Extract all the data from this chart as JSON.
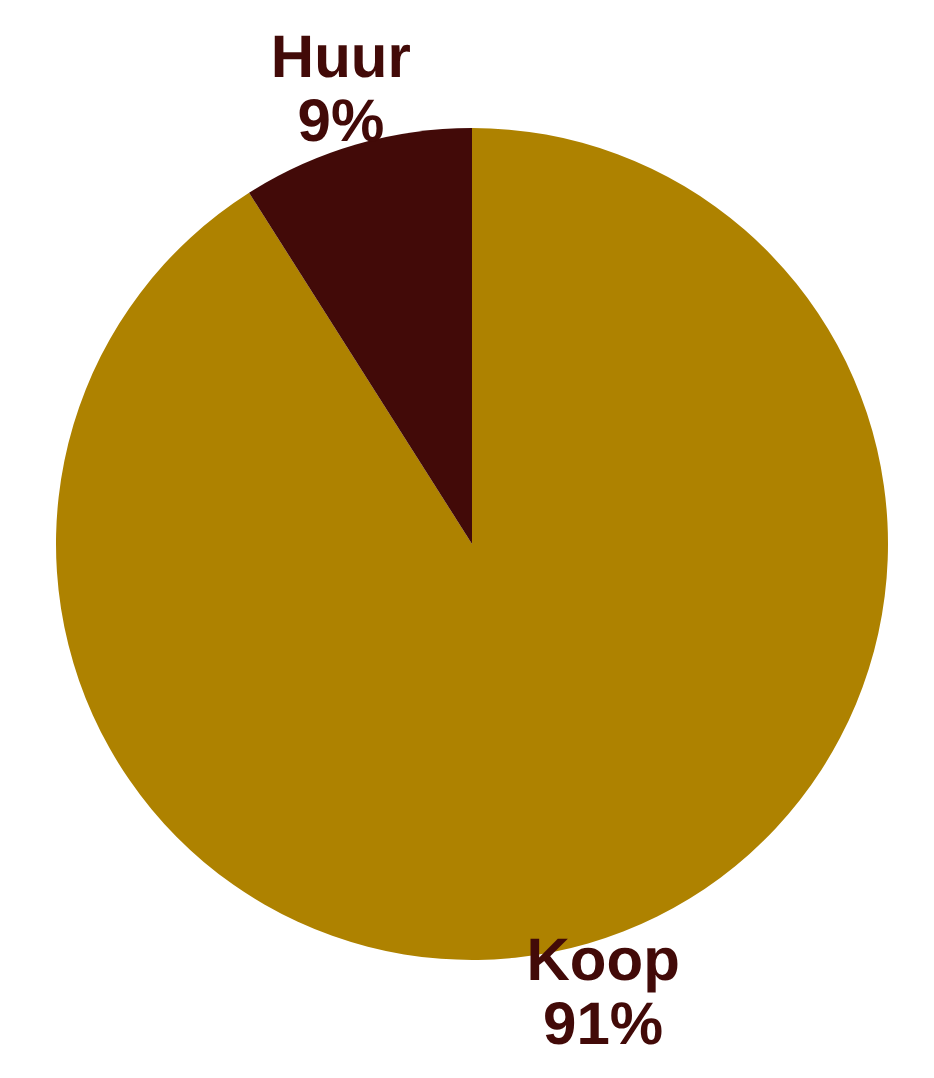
{
  "chart_data": {
    "type": "pie",
    "categories": [
      "Koop",
      "Huur"
    ],
    "values": [
      91,
      9
    ],
    "colors": [
      "#ae8200",
      "#420a08"
    ],
    "value_labels": [
      "91%",
      "9%"
    ],
    "legend": false
  }
}
